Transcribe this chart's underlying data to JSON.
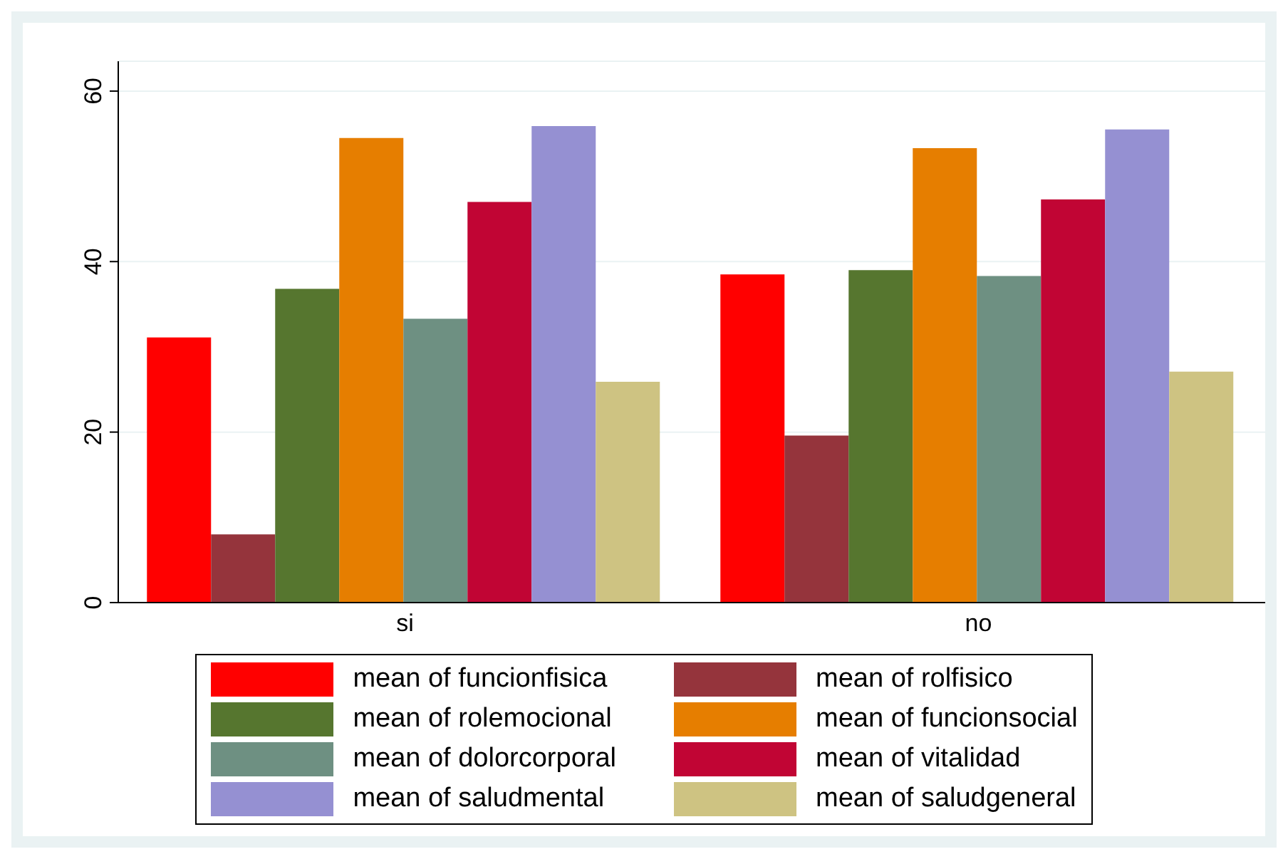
{
  "chart_data": {
    "type": "bar",
    "categories": [
      "si",
      "no"
    ],
    "series": [
      {
        "name": "mean of funcionfisica",
        "color": "#ff0000",
        "values": [
          31.1,
          38.5
        ]
      },
      {
        "name": "mean of rolfisico",
        "color": "#95343c",
        "values": [
          8.0,
          19.6
        ]
      },
      {
        "name": "mean of rolemocional",
        "color": "#56762f",
        "values": [
          36.8,
          39.0
        ]
      },
      {
        "name": "mean of funcionsocial",
        "color": "#e67e00",
        "values": [
          54.5,
          53.3
        ]
      },
      {
        "name": "mean of dolorcorporal",
        "color": "#6e9082",
        "values": [
          33.3,
          38.3
        ]
      },
      {
        "name": "mean of vitalidad",
        "color": "#c10534",
        "values": [
          47.0,
          47.3
        ]
      },
      {
        "name": "mean of saludmental",
        "color": "#9590d2",
        "values": [
          55.9,
          55.5
        ]
      },
      {
        "name": "mean of saludgeneral",
        "color": "#cec382",
        "values": [
          25.9,
          27.1
        ]
      }
    ],
    "ylim": [
      0,
      63.5
    ],
    "yticks": [
      0,
      20,
      40,
      60
    ],
    "grid": "y",
    "legend": "bottom"
  }
}
